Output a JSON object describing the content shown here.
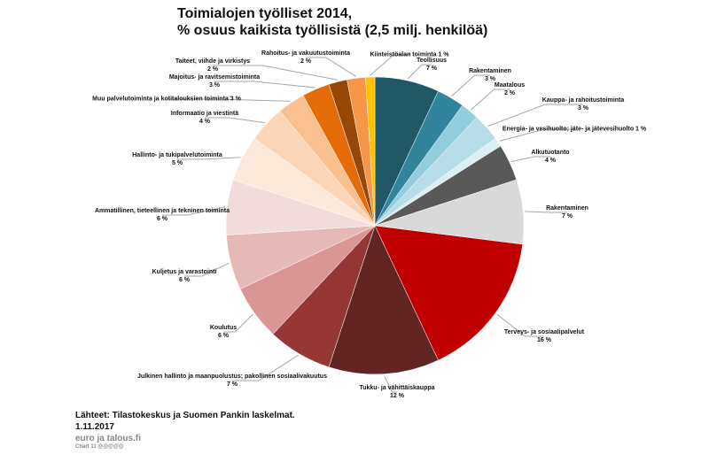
{
  "chart_data": {
    "type": "pie",
    "title_line1": "Toimialojen työlliset 2014,",
    "title_line2": "% osuus kaikista työllisistä (2,5 milj. henkilöä)",
    "slices": [
      {
        "name": "Teollisuus",
        "value": 7,
        "label": "Teollisuus",
        "pct": "7 %",
        "color": "#215868"
      },
      {
        "name": "Rakentaminen",
        "value": 3,
        "label": "Rakentaminen",
        "pct": "3 %",
        "color": "#31849b"
      },
      {
        "name": "Maatalous",
        "value": 2,
        "label": "Maatalous",
        "pct": "2 %",
        "color": "#92cddc"
      },
      {
        "name": "Kauppa- ja rahoitustoiminta",
        "value": 3,
        "label": "Kauppa- ja rahoitustoiminta",
        "pct": "3 %",
        "color": "#b7dde8"
      },
      {
        "name": "Energia- ja vesihuolto; jäte- ja jätevesihuolto",
        "value": 1,
        "label": "Energia- ja vesihuolto; jäte- ja jätevesihuolto 1 %",
        "pct": "",
        "color": "#dbeef3"
      },
      {
        "name": "Alkutuotanto",
        "value": 4,
        "label": "Alkutuotanto",
        "pct": "4 %",
        "color": "#595959"
      },
      {
        "name": "Rakentaminen",
        "value": 7,
        "label": "Rakentaminen",
        "pct": "7 %",
        "color": "#d9d9d9"
      },
      {
        "name": "Terveys- ja sosiaalipalvelut",
        "value": 16,
        "label": "Terveys- ja sosiaalipalvelut",
        "pct": "16 %",
        "color": "#c00000"
      },
      {
        "name": "Tukku- ja vähittäiskauppa",
        "value": 12,
        "label": "Tukku- ja vähittäiskauppa",
        "pct": "12 %",
        "color": "#632523"
      },
      {
        "name": "Julkinen hallinto ja maanpuolustus; pakollinen sosiaalivakuutus",
        "value": 7,
        "label": "Julkinen hallinto ja maanpuolustus; pakollinen sosiaalivakuutus",
        "pct": "7 %",
        "color": "#953735"
      },
      {
        "name": "Koulutus",
        "value": 6,
        "label": "Koulutus",
        "pct": "6 %",
        "color": "#d99694"
      },
      {
        "name": "Kuljetus ja varastointi",
        "value": 6,
        "label": "Kuljetus ja varastointi",
        "pct": "6 %",
        "color": "#e6b9b8"
      },
      {
        "name": "Ammatillinen, tieteellinen ja tekninen toiminta",
        "value": 6,
        "label": "Ammatillinen, tieteellinen ja tekninen toiminta",
        "pct": "6 %",
        "color": "#f2dcdb"
      },
      {
        "name": "Hallinto- ja tukipalvelutoiminta",
        "value": 5,
        "label": "Hallinto- ja tukipalvelutoiminta",
        "pct": "5 %",
        "color": "#fde9d9"
      },
      {
        "name": "Informaatio ja viestintä",
        "value": 4,
        "label": "Informaatio ja viestintä",
        "pct": "4 %",
        "color": "#fbd5b5"
      },
      {
        "name": "Muu palvelutoiminta ja kotitalouksien toiminta",
        "value": 3,
        "label": "Muu palvelutoiminta ja kotitalouksien toiminta 3 %",
        "pct": "",
        "color": "#fac090"
      },
      {
        "name": "Majoitus- ja ravitsemistoiminta",
        "value": 3,
        "label": "Majoitus- ja ravitsemistoiminta",
        "pct": "3 %",
        "color": "#e36c09"
      },
      {
        "name": "Taiteet, viihde ja virkistys",
        "value": 2,
        "label": "Taiteet, viihde ja virkistys",
        "pct": "2 %",
        "color": "#974806"
      },
      {
        "name": "Rahoitus- ja vakuutustoiminta",
        "value": 2,
        "label": "Rahoitus- ja vakuutustoiminta",
        "pct": "2 %",
        "color": "#f79646"
      },
      {
        "name": "Kiinteistöalan toiminta",
        "value": 1,
        "label": "Kiinteistöalan toiminta 1 %",
        "pct": "",
        "color": "#ffc000"
      }
    ]
  },
  "footer": {
    "source": "Lähteet: Tilastokeskus ja Suomen Pankin laskelmat.",
    "date": "1.11.2017",
    "site": "euro ja talous.fi",
    "code": "Chart 11 @@@@@"
  }
}
